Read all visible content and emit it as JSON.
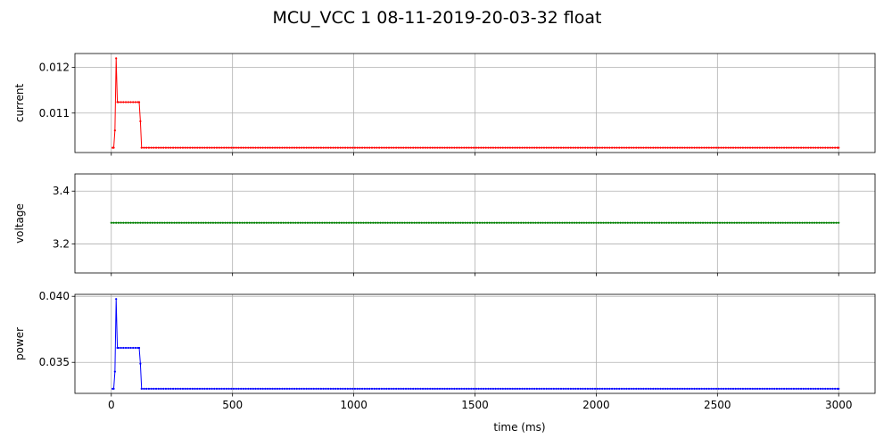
{
  "figure": {
    "title": "MCU_VCC   1   08-11-2019-20-03-32   float"
  },
  "chart_data": [
    {
      "type": "line",
      "ylabel": "current",
      "xlabel": "",
      "color": "#ff0000",
      "xlim": [
        -150,
        3150
      ],
      "ylim": [
        0.010135,
        0.012305
      ],
      "yticks": [
        0.011,
        0.012
      ],
      "ytick_labels": [
        "0.011",
        "0.012"
      ],
      "xticks": [
        0,
        500,
        1000,
        1500,
        2000,
        2500,
        3000
      ],
      "xtick_labels": [],
      "grid": true,
      "series": [
        {
          "x": [
            5,
            10,
            15,
            20,
            25,
            30,
            115,
            120,
            125,
            3000
          ],
          "y": [
            0.01024,
            0.01024,
            0.01062,
            0.0122,
            0.01124,
            0.01124,
            0.01124,
            0.01082,
            0.01024,
            0.01024
          ],
          "sample_every": 10
        }
      ]
    },
    {
      "type": "line",
      "ylabel": "voltage",
      "xlabel": "",
      "color": "#008000",
      "xlim": [
        -150,
        3150
      ],
      "ylim": [
        3.09,
        3.465
      ],
      "yticks": [
        3.2,
        3.4
      ],
      "ytick_labels": [
        "3.2",
        "3.4"
      ],
      "xticks": [
        0,
        500,
        1000,
        1500,
        2000,
        2500,
        3000
      ],
      "xtick_labels": [],
      "grid": true,
      "series": [
        {
          "x": [
            0,
            3000
          ],
          "y": [
            3.28,
            3.28
          ],
          "sample_every": 10
        }
      ]
    },
    {
      "type": "line",
      "ylabel": "power",
      "xlabel": "time (ms)",
      "color": "#0000ff",
      "xlim": [
        -150,
        3150
      ],
      "ylim": [
        0.03265,
        0.04015
      ],
      "yticks": [
        0.035,
        0.04
      ],
      "ytick_labels": [
        "0.035",
        "0.040"
      ],
      "xticks": [
        0,
        500,
        1000,
        1500,
        2000,
        2500,
        3000
      ],
      "xtick_labels": [
        "0",
        "500",
        "1000",
        "1500",
        "2000",
        "2500",
        "3000"
      ],
      "grid": true,
      "series": [
        {
          "x": [
            5,
            10,
            15,
            20,
            25,
            30,
            115,
            120,
            125,
            3000
          ],
          "y": [
            0.033,
            0.033,
            0.0343,
            0.0398,
            0.0361,
            0.0361,
            0.0361,
            0.0349,
            0.033,
            0.033
          ],
          "sample_every": 10
        }
      ]
    }
  ]
}
